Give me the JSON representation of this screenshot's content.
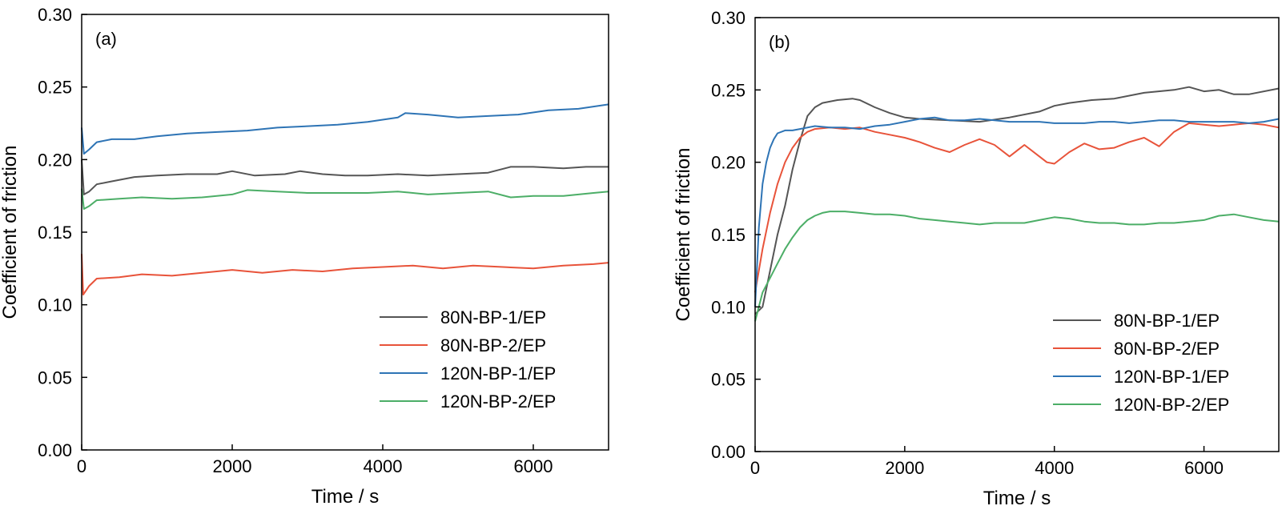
{
  "colors": {
    "80N-BP-1/EP": "#555555",
    "80N-BP-2/EP": "#e8533a",
    "120N-BP-1/EP": "#2e74b5",
    "120N-BP-2/EP": "#4cae67"
  },
  "chart_data": [
    {
      "type": "line",
      "panel_label": "(a)",
      "xlabel": "Time / s",
      "ylabel": "Coefficient of friction",
      "xlim": [
        0,
        7000
      ],
      "ylim": [
        0,
        0.3
      ],
      "x_ticks": [
        "0",
        "2000",
        "4000",
        "6000"
      ],
      "y_ticks": [
        "0.00",
        "0.05",
        "0.10",
        "0.15",
        "0.20",
        "0.25",
        "0.30"
      ],
      "grid": false,
      "legend_position": "lower-right",
      "series": [
        {
          "name": "80N-BP-1/EP",
          "x": [
            0,
            30,
            100,
            200,
            400,
            700,
            1000,
            1400,
            1800,
            2000,
            2300,
            2700,
            2900,
            3200,
            3500,
            3800,
            4200,
            4600,
            5000,
            5400,
            5700,
            6000,
            6400,
            6700,
            7000
          ],
          "y": [
            0.2,
            0.176,
            0.178,
            0.183,
            0.185,
            0.188,
            0.189,
            0.19,
            0.19,
            0.192,
            0.189,
            0.19,
            0.192,
            0.19,
            0.189,
            0.189,
            0.19,
            0.189,
            0.19,
            0.191,
            0.195,
            0.195,
            0.194,
            0.195,
            0.195
          ]
        },
        {
          "name": "80N-BP-2/EP",
          "x": [
            0,
            20,
            100,
            200,
            500,
            800,
            1200,
            1600,
            2000,
            2400,
            2800,
            3200,
            3600,
            4000,
            4400,
            4800,
            5200,
            5600,
            6000,
            6400,
            6800,
            7000
          ],
          "y": [
            0.135,
            0.107,
            0.113,
            0.118,
            0.119,
            0.121,
            0.12,
            0.122,
            0.124,
            0.122,
            0.124,
            0.123,
            0.125,
            0.126,
            0.127,
            0.125,
            0.127,
            0.126,
            0.125,
            0.127,
            0.128,
            0.129
          ]
        },
        {
          "name": "120N-BP-1/EP",
          "x": [
            0,
            30,
            100,
            200,
            400,
            700,
            1000,
            1400,
            1800,
            2200,
            2600,
            3000,
            3400,
            3800,
            4200,
            4300,
            4600,
            5000,
            5400,
            5800,
            6200,
            6600,
            7000
          ],
          "y": [
            0.222,
            0.204,
            0.207,
            0.212,
            0.214,
            0.214,
            0.216,
            0.218,
            0.219,
            0.22,
            0.222,
            0.223,
            0.224,
            0.226,
            0.229,
            0.232,
            0.231,
            0.229,
            0.23,
            0.231,
            0.234,
            0.235,
            0.238
          ]
        },
        {
          "name": "120N-BP-2/EP",
          "x": [
            0,
            30,
            100,
            200,
            500,
            800,
            1200,
            1600,
            2000,
            2200,
            2600,
            3000,
            3400,
            3800,
            4200,
            4600,
            5000,
            5400,
            5700,
            6000,
            6400,
            6800,
            7000
          ],
          "y": [
            0.18,
            0.166,
            0.168,
            0.172,
            0.173,
            0.174,
            0.173,
            0.174,
            0.176,
            0.179,
            0.178,
            0.177,
            0.177,
            0.177,
            0.178,
            0.176,
            0.177,
            0.178,
            0.174,
            0.175,
            0.175,
            0.177,
            0.178
          ]
        }
      ]
    },
    {
      "type": "line",
      "panel_label": "(b)",
      "xlabel": "Time / s",
      "ylabel": "Coefficient of friction",
      "xlim": [
        0,
        7000
      ],
      "ylim": [
        0,
        0.3
      ],
      "x_ticks": [
        "0",
        "2000",
        "4000",
        "6000"
      ],
      "y_ticks": [
        "0.00",
        "0.05",
        "0.10",
        "0.15",
        "0.20",
        "0.25",
        "0.30"
      ],
      "grid": false,
      "legend_position": "lower-right",
      "series": [
        {
          "name": "80N-BP-1/EP",
          "x": [
            0,
            100,
            200,
            300,
            400,
            500,
            600,
            700,
            800,
            900,
            1100,
            1300,
            1400,
            1600,
            1800,
            2000,
            2200,
            2600,
            3000,
            3400,
            3800,
            4000,
            4200,
            4500,
            4800,
            5200,
            5600,
            5800,
            6000,
            6200,
            6400,
            6600,
            7000
          ],
          "y": [
            0.095,
            0.1,
            0.125,
            0.15,
            0.17,
            0.195,
            0.215,
            0.232,
            0.238,
            0.241,
            0.243,
            0.244,
            0.243,
            0.238,
            0.234,
            0.231,
            0.23,
            0.229,
            0.228,
            0.231,
            0.235,
            0.239,
            0.241,
            0.243,
            0.244,
            0.248,
            0.25,
            0.252,
            0.249,
            0.25,
            0.247,
            0.247,
            0.251
          ]
        },
        {
          "name": "80N-BP-2/EP",
          "x": [
            0,
            100,
            200,
            300,
            400,
            500,
            600,
            700,
            800,
            1000,
            1200,
            1400,
            1600,
            1800,
            2000,
            2200,
            2400,
            2600,
            2800,
            3000,
            3200,
            3400,
            3600,
            3800,
            3900,
            4000,
            4200,
            4400,
            4600,
            4800,
            5000,
            5200,
            5400,
            5600,
            5800,
            6000,
            6200,
            6400,
            6600,
            6800,
            7000
          ],
          "y": [
            0.11,
            0.14,
            0.165,
            0.185,
            0.2,
            0.21,
            0.217,
            0.221,
            0.223,
            0.224,
            0.223,
            0.224,
            0.221,
            0.219,
            0.217,
            0.214,
            0.21,
            0.207,
            0.212,
            0.216,
            0.212,
            0.204,
            0.212,
            0.204,
            0.2,
            0.199,
            0.207,
            0.213,
            0.209,
            0.21,
            0.214,
            0.217,
            0.211,
            0.221,
            0.227,
            0.226,
            0.225,
            0.226,
            0.227,
            0.226,
            0.224
          ]
        },
        {
          "name": "120N-BP-1/EP",
          "x": [
            0,
            50,
            100,
            150,
            200,
            250,
            300,
            400,
            500,
            600,
            800,
            1000,
            1200,
            1400,
            1600,
            1800,
            2000,
            2200,
            2400,
            2600,
            2800,
            3000,
            3200,
            3400,
            3600,
            3800,
            4000,
            4200,
            4400,
            4600,
            4800,
            5000,
            5200,
            5400,
            5600,
            5800,
            6000,
            6200,
            6400,
            6600,
            6800,
            7000
          ],
          "y": [
            0.1,
            0.155,
            0.185,
            0.2,
            0.21,
            0.216,
            0.22,
            0.222,
            0.222,
            0.223,
            0.225,
            0.224,
            0.224,
            0.223,
            0.225,
            0.226,
            0.228,
            0.23,
            0.231,
            0.229,
            0.229,
            0.23,
            0.229,
            0.228,
            0.228,
            0.228,
            0.227,
            0.227,
            0.227,
            0.228,
            0.228,
            0.227,
            0.228,
            0.229,
            0.229,
            0.228,
            0.228,
            0.228,
            0.228,
            0.227,
            0.228,
            0.23
          ]
        },
        {
          "name": "120N-BP-2/EP",
          "x": [
            0,
            100,
            200,
            300,
            400,
            500,
            600,
            700,
            800,
            900,
            1000,
            1200,
            1400,
            1600,
            1800,
            2000,
            2200,
            2400,
            2600,
            2800,
            3000,
            3200,
            3400,
            3600,
            3800,
            4000,
            4200,
            4400,
            4600,
            4800,
            5000,
            5200,
            5400,
            5600,
            5800,
            6000,
            6200,
            6400,
            6600,
            6800,
            7000
          ],
          "y": [
            0.09,
            0.11,
            0.12,
            0.13,
            0.14,
            0.148,
            0.155,
            0.16,
            0.163,
            0.165,
            0.166,
            0.166,
            0.165,
            0.164,
            0.164,
            0.163,
            0.161,
            0.16,
            0.159,
            0.158,
            0.157,
            0.158,
            0.158,
            0.158,
            0.16,
            0.162,
            0.161,
            0.159,
            0.158,
            0.158,
            0.157,
            0.157,
            0.158,
            0.158,
            0.159,
            0.16,
            0.163,
            0.164,
            0.162,
            0.16,
            0.159
          ]
        }
      ]
    }
  ]
}
